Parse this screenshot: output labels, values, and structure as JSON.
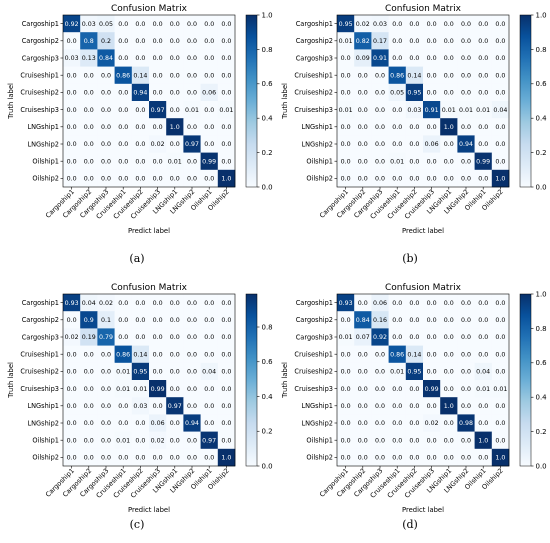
{
  "labels": [
    "Cargoship1",
    "Cargoship2",
    "Cargoship3",
    "Cruiseship1",
    "Cruiseship2",
    "Cruiseship3",
    "LNGship1",
    "LNGship2",
    "Oilship1",
    "Oilship2"
  ],
  "chart_data": [
    {
      "type": "heatmap",
      "title": "Confusion Matrix",
      "xlabel": "Predict label",
      "ylabel": "Truth label",
      "caption": "(a)",
      "colorbar_ticks": [
        "0.0",
        "0.2",
        "0.4",
        "0.6",
        "0.8",
        "1.0"
      ],
      "vmax": 1.0,
      "cells": [
        [
          "0.92",
          "0.03",
          "0.05",
          "0.0",
          "0.0",
          "0.0",
          "0.0",
          "0.0",
          "0.0",
          "0.0"
        ],
        [
          "0.0",
          "0.8",
          "0.2",
          "0.0",
          "0.0",
          "0.0",
          "0.0",
          "0.0",
          "0.0",
          "0.0"
        ],
        [
          "0.03",
          "0.13",
          "0.84",
          "0.0",
          "0.0",
          "0.0",
          "0.0",
          "0.0",
          "0.0",
          "0.0"
        ],
        [
          "0.0",
          "0.0",
          "0.0",
          "0.86",
          "0.14",
          "0.0",
          "0.0",
          "0.0",
          "0.0",
          "0.0"
        ],
        [
          "0.0",
          "0.0",
          "0.0",
          "0.0",
          "0.94",
          "0.0",
          "0.0",
          "0.0",
          "0.06",
          "0.0"
        ],
        [
          "0.0",
          "0.0",
          "0.0",
          "0.0",
          "0.0",
          "0.97",
          "0.0",
          "0.01",
          "0.0",
          "0.01"
        ],
        [
          "0.0",
          "0.0",
          "0.0",
          "0.0",
          "0.0",
          "0.0",
          "1.0",
          "0.0",
          "0.0",
          "0.0"
        ],
        [
          "0.0",
          "0.0",
          "0.0",
          "0.0",
          "0.0",
          "0.02",
          "0.0",
          "0.97",
          "0.0",
          "0.0"
        ],
        [
          "0.0",
          "0.0",
          "0.0",
          "0.0",
          "0.0",
          "0.0",
          "0.01",
          "0.0",
          "0.99",
          "0.0"
        ],
        [
          "0.0",
          "0.0",
          "0.0",
          "0.0",
          "0.0",
          "0.0",
          "0.0",
          "0.0",
          "0.0",
          "1.0"
        ]
      ]
    },
    {
      "type": "heatmap",
      "title": "Confusion Matrix",
      "xlabel": "Predict label",
      "ylabel": "Truth label",
      "caption": "(b)",
      "colorbar_ticks": [
        "0.0",
        "0.2",
        "0.4",
        "0.6",
        "0.8",
        "1.0"
      ],
      "vmax": 1.0,
      "cells": [
        [
          "0.95",
          "0.02",
          "0.03",
          "0.0",
          "0.0",
          "0.0",
          "0.0",
          "0.0",
          "0.0",
          "0.0"
        ],
        [
          "0.01",
          "0.82",
          "0.17",
          "0.0",
          "0.0",
          "0.0",
          "0.0",
          "0.0",
          "0.0",
          "0.0"
        ],
        [
          "0.0",
          "0.09",
          "0.91",
          "0.0",
          "0.0",
          "0.0",
          "0.0",
          "0.0",
          "0.0",
          "0.0"
        ],
        [
          "0.0",
          "0.0",
          "0.0",
          "0.86",
          "0.14",
          "0.0",
          "0.0",
          "0.0",
          "0.0",
          "0.0"
        ],
        [
          "0.0",
          "0.0",
          "0.0",
          "0.05",
          "0.95",
          "0.0",
          "0.0",
          "0.0",
          "0.0",
          "0.0"
        ],
        [
          "0.01",
          "0.0",
          "0.0",
          "0.0",
          "0.03",
          "0.91",
          "0.01",
          "0.01",
          "0.01",
          "0.04"
        ],
        [
          "0.0",
          "0.0",
          "0.0",
          "0.0",
          "0.0",
          "0.0",
          "1.0",
          "0.0",
          "0.0",
          "0.0"
        ],
        [
          "0.0",
          "0.0",
          "0.0",
          "0.0",
          "0.0",
          "0.06",
          "0.0",
          "0.94",
          "0.0",
          "0.0"
        ],
        [
          "0.0",
          "0.0",
          "0.0",
          "0.01",
          "0.0",
          "0.0",
          "0.0",
          "0.0",
          "0.99",
          "0.0"
        ],
        [
          "0.0",
          "0.0",
          "0.0",
          "0.0",
          "0.0",
          "0.0",
          "0.0",
          "0.0",
          "0.0",
          "1.0"
        ]
      ]
    },
    {
      "type": "heatmap",
      "title": "Confusion Matrix",
      "xlabel": "Predict label",
      "ylabel": "Truth label",
      "caption": "(c)",
      "colorbar_ticks": [
        "0.0",
        "0.2",
        "0.4",
        "0.6",
        "0.8"
      ],
      "vmax": 0.99,
      "cells": [
        [
          "0.93",
          "0.04",
          "0.02",
          "0.0",
          "0.0",
          "0.0",
          "0.0",
          "0.0",
          "0.0",
          "0.0"
        ],
        [
          "0.0",
          "0.9",
          "0.1",
          "0.0",
          "0.0",
          "0.0",
          "0.0",
          "0.0",
          "0.0",
          "0.0"
        ],
        [
          "0.02",
          "0.19",
          "0.79",
          "0.0",
          "0.0",
          "0.0",
          "0.0",
          "0.0",
          "0.0",
          "0.0"
        ],
        [
          "0.0",
          "0.0",
          "0.0",
          "0.86",
          "0.14",
          "0.0",
          "0.0",
          "0.0",
          "0.0",
          "0.0"
        ],
        [
          "0.0",
          "0.0",
          "0.0",
          "0.01",
          "0.95",
          "0.0",
          "0.0",
          "0.0",
          "0.04",
          "0.0"
        ],
        [
          "0.0",
          "0.0",
          "0.0",
          "0.01",
          "0.01",
          "0.99",
          "0.0",
          "0.0",
          "0.0",
          "0.0"
        ],
        [
          "0.0",
          "0.0",
          "0.0",
          "0.0",
          "0.03",
          "0.0",
          "0.97",
          "0.0",
          "0.0",
          "0.0"
        ],
        [
          "0.0",
          "0.0",
          "0.0",
          "0.0",
          "0.0",
          "0.06",
          "0.0",
          "0.94",
          "0.0",
          "0.0"
        ],
        [
          "0.0",
          "0.0",
          "0.0",
          "0.01",
          "0.0",
          "0.02",
          "0.0",
          "0.0",
          "0.97",
          "0.0"
        ],
        [
          "0.0",
          "0.0",
          "0.0",
          "0.0",
          "0.0",
          "0.0",
          "0.0",
          "0.0",
          "0.0",
          "1.0"
        ]
      ]
    },
    {
      "type": "heatmap",
      "title": "Confusion Matrix",
      "xlabel": "Predict label",
      "ylabel": "Truth label",
      "caption": "(d)",
      "colorbar_ticks": [
        "0.0",
        "0.2",
        "0.4",
        "0.6",
        "0.8",
        "1.0"
      ],
      "vmax": 1.0,
      "cells": [
        [
          "0.93",
          "0.0",
          "0.06",
          "0.0",
          "0.0",
          "0.0",
          "0.0",
          "0.0",
          "0.0",
          "0.0"
        ],
        [
          "0.0",
          "0.84",
          "0.16",
          "0.0",
          "0.0",
          "0.0",
          "0.0",
          "0.0",
          "0.0",
          "0.0"
        ],
        [
          "0.01",
          "0.07",
          "0.92",
          "0.0",
          "0.0",
          "0.0",
          "0.0",
          "0.0",
          "0.0",
          "0.0"
        ],
        [
          "0.0",
          "0.0",
          "0.0",
          "0.86",
          "0.14",
          "0.0",
          "0.0",
          "0.0",
          "0.0",
          "0.0"
        ],
        [
          "0.0",
          "0.0",
          "0.0",
          "0.01",
          "0.95",
          "0.0",
          "0.0",
          "0.0",
          "0.04",
          "0.0"
        ],
        [
          "0.0",
          "0.0",
          "0.0",
          "0.0",
          "0.0",
          "0.99",
          "0.0",
          "0.0",
          "0.01",
          "0.01"
        ],
        [
          "0.0",
          "0.0",
          "0.0",
          "0.0",
          "0.0",
          "0.0",
          "1.0",
          "0.0",
          "0.0",
          "0.0"
        ],
        [
          "0.0",
          "0.0",
          "0.0",
          "0.0",
          "0.0",
          "0.02",
          "0.0",
          "0.98",
          "0.0",
          "0.0"
        ],
        [
          "0.0",
          "0.0",
          "0.0",
          "0.0",
          "0.0",
          "0.0",
          "0.0",
          "0.0",
          "1.0",
          "0.0"
        ],
        [
          "0.0",
          "0.0",
          "0.0",
          "0.0",
          "0.0",
          "0.0",
          "0.0",
          "0.0",
          "0.0",
          "1.0"
        ]
      ]
    }
  ]
}
